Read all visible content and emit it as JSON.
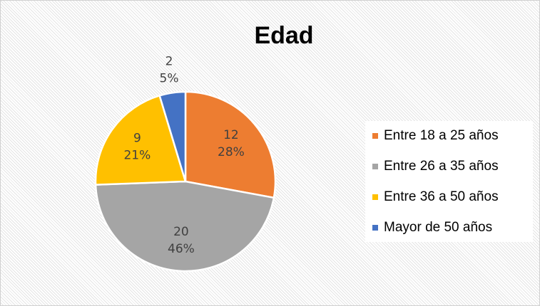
{
  "chart_data": {
    "type": "pie",
    "title": "Edad",
    "categories": [
      "Entre 18 a 25 años",
      "Entre 26 a 35 años",
      "Entre 36 a 50 años",
      "Mayor de 50 años"
    ],
    "values": [
      12,
      20,
      9,
      2
    ],
    "percent_labels": [
      "28%",
      "46%",
      "21%",
      "5%"
    ],
    "colors": [
      "#ed7d31",
      "#a5a5a5",
      "#ffc000",
      "#4472c4"
    ],
    "legend": "right"
  }
}
